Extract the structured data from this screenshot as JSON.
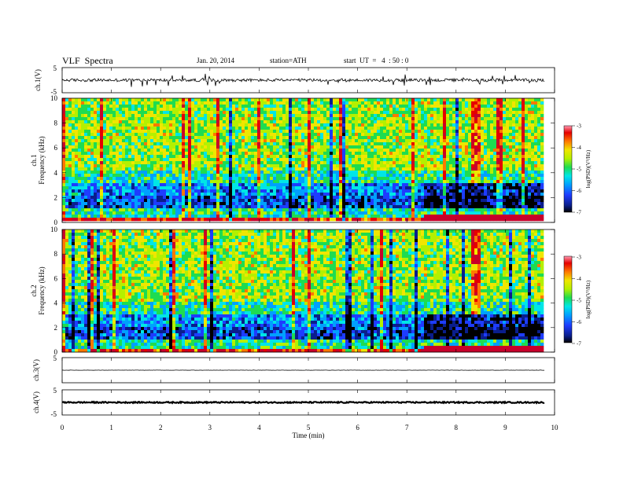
{
  "header": {
    "title": "VLF  Spectra",
    "date": "Jan. 20, 2014",
    "station": "station=ATH",
    "start": "start  UT  =   4  : 50 : 0"
  },
  "colors": {
    "palette": [
      "#000000",
      "#0a1e8c",
      "#1e3cff",
      "#00a0ff",
      "#00e6e6",
      "#1edc50",
      "#b4f000",
      "#f0e600",
      "#ff7800",
      "#e60000",
      "#c8002a"
    ]
  },
  "chart_data": [
    {
      "id": "ch1",
      "type": "line",
      "ylabel": "ch.1(V)",
      "ylim": [
        -5,
        5
      ],
      "yticks": [
        "5",
        "-5"
      ],
      "baseline": 0,
      "noise": 0.6,
      "spikes": 1
    },
    {
      "id": "spec1",
      "type": "heatmap",
      "ylabel_top": "ch.1",
      "ylabel": "Frequency  (kHz)",
      "ylim": [
        0,
        10
      ],
      "yticks": [
        "0",
        "2",
        "4",
        "6",
        "8",
        "10"
      ],
      "colorbar": {
        "label": "log(PSD)(V²/Hz)",
        "range": [
          -7,
          -3
        ],
        "ticks": [
          "-3",
          "-4",
          "-5",
          "-6",
          "-7"
        ]
      }
    },
    {
      "id": "spec2",
      "type": "heatmap",
      "ylabel_top": "ch.2",
      "ylabel": "Frequency  (kHz)",
      "ylim": [
        0,
        10
      ],
      "yticks": [
        "0",
        "2",
        "4",
        "6",
        "8",
        "10"
      ],
      "colorbar": {
        "label": "log(PSD)(V²/Hz)",
        "range": [
          -7,
          -3
        ],
        "ticks": [
          "-3",
          "-4",
          "-5",
          "-6",
          "-7"
        ]
      }
    },
    {
      "id": "ch3",
      "type": "line",
      "ylabel": "ch.3(V)",
      "ylim": [
        -5,
        5
      ],
      "yticks": [
        "5"
      ],
      "baseline": 0,
      "noise": 0.05,
      "spikes": 0
    },
    {
      "id": "ch4",
      "type": "line",
      "ylabel": "ch.4(V)",
      "ylim": [
        -5,
        5
      ],
      "yticks": [
        "5",
        "-5"
      ],
      "baseline": 0,
      "noise": 0.25,
      "spikes": 0
    }
  ],
  "xaxis": {
    "label": "Time  (min)",
    "xlim": [
      0,
      10
    ],
    "ticks": [
      "0",
      "1",
      "2",
      "3",
      "4",
      "5",
      "6",
      "7",
      "8",
      "9",
      "10"
    ],
    "data_end": 9.8
  }
}
